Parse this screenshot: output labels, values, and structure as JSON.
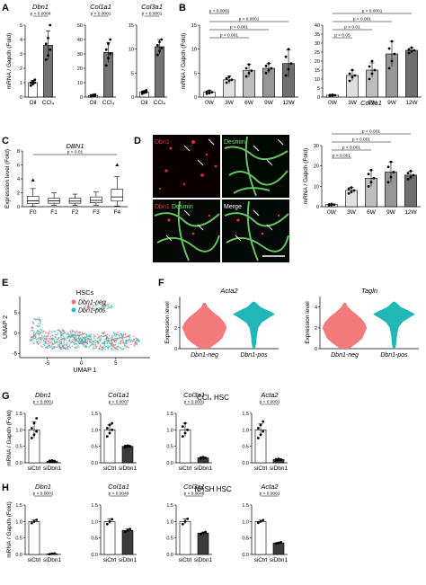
{
  "panels": {
    "A": {
      "label": "A"
    },
    "B": {
      "label": "B"
    },
    "C": {
      "label": "C"
    },
    "D": {
      "label": "D"
    },
    "E": {
      "label": "E"
    },
    "F": {
      "label": "F"
    },
    "G": {
      "label": "G"
    },
    "H": {
      "label": "H"
    }
  },
  "chart_data": [
    {
      "id": "A1",
      "type": "bar",
      "title": "Dbn1",
      "ylabel": "mRNA / Gapdh (Fold)",
      "categories": [
        "Oil",
        "CCl₄"
      ],
      "values": [
        1.0,
        3.6
      ],
      "errors": [
        0.15,
        1.0
      ],
      "ylim": [
        0,
        5
      ],
      "yticks": [
        0,
        1,
        2,
        3,
        4,
        5
      ],
      "colors": [
        "#ffffff",
        "#737373"
      ],
      "points": [
        [
          0.8,
          0.9,
          1.0,
          1.0,
          1.1,
          1.2
        ],
        [
          2.6,
          2.9,
          3.3,
          3.7,
          4.1,
          5.0
        ]
      ],
      "brackets": [
        {
          "from": 0,
          "to": 1,
          "label": "p < 0.0004"
        }
      ]
    },
    {
      "id": "A2",
      "type": "bar",
      "title": "Col1a1",
      "categories": [
        "Oil",
        "CCl₄"
      ],
      "values": [
        1.0,
        31
      ],
      "errors": [
        0.7,
        7
      ],
      "ylim": [
        0,
        50
      ],
      "yticks": [
        0,
        10,
        20,
        30,
        40,
        50
      ],
      "colors": [
        "#ffffff",
        "#737373"
      ],
      "points": [
        [
          0.4,
          0.8,
          1.0,
          1.2,
          1.5,
          1.8
        ],
        [
          22,
          27,
          30,
          33,
          37,
          40
        ]
      ],
      "brackets": [
        {
          "from": 0,
          "to": 1,
          "label": "p < 0.0001"
        }
      ]
    },
    {
      "id": "A3",
      "type": "bar",
      "title": "Col3a1",
      "categories": [
        "Oil",
        "CCl₄"
      ],
      "values": [
        1.0,
        10.5
      ],
      "errors": [
        0.3,
        1.5
      ],
      "ylim": [
        0,
        15
      ],
      "yticks": [
        0,
        5,
        10,
        15
      ],
      "colors": [
        "#ffffff",
        "#737373"
      ],
      "points": [
        [
          0.7,
          0.9,
          1.0,
          1.1,
          1.2,
          1.4
        ],
        [
          8.8,
          9.6,
          10.2,
          10.8,
          11.5,
          12.0
        ]
      ],
      "brackets": [
        {
          "from": 0,
          "to": 1,
          "label": "p < 0.0001"
        }
      ]
    },
    {
      "id": "B1",
      "type": "bar",
      "title": "Dbn1",
      "ylabel": "mRNA / Gapdh (Fold)",
      "categories": [
        "0W",
        "3W",
        "6W",
        "9W",
        "12W"
      ],
      "values": [
        1.0,
        3.6,
        5.5,
        6.0,
        7.0
      ],
      "errors": [
        0.4,
        0.8,
        1.3,
        1.0,
        2.8
      ],
      "ylim": [
        0,
        15
      ],
      "yticks": [
        0,
        5,
        10,
        15
      ],
      "colors": [
        "#ffffff",
        "#e0e0e0",
        "#bdbdbd",
        "#969696",
        "#6e6e6e"
      ],
      "points": [
        [
          0.7,
          0.8,
          1.0,
          1.1,
          1.3
        ],
        [
          3.0,
          3.4,
          3.6,
          3.9,
          4.2
        ],
        [
          4.3,
          5.0,
          5.5,
          6.0,
          6.8
        ],
        [
          5.0,
          5.6,
          6.0,
          6.5,
          7.0
        ],
        [
          4.5,
          5.8,
          7.0,
          8.4,
          10.0
        ]
      ],
      "brackets": [
        {
          "from": 0,
          "to": 2,
          "label": "p < 0.001"
        },
        {
          "from": 0,
          "to": 3,
          "label": "p < 0.001"
        },
        {
          "from": 0,
          "to": 4,
          "label": "p < 0.0001"
        },
        {
          "from": 0,
          "to": 1,
          "label": "p < 0.0001"
        }
      ]
    },
    {
      "id": "B2",
      "type": "bar",
      "title": "Col1a1",
      "categories": [
        "0W",
        "3W",
        "6W",
        "9W",
        "12W"
      ],
      "values": [
        1.0,
        12,
        15,
        24,
        26
      ],
      "errors": [
        0.3,
        3,
        4,
        7,
        1.5
      ],
      "ylim": [
        0,
        40
      ],
      "yticks": [
        0,
        5,
        10,
        15,
        20,
        25,
        30,
        35,
        40
      ],
      "colors": [
        "#ffffff",
        "#e0e0e0",
        "#bdbdbd",
        "#969696",
        "#6e6e6e"
      ],
      "points": [
        [
          0.7,
          0.8,
          1.0,
          1.1,
          1.3
        ],
        [
          9,
          11,
          12,
          13,
          15
        ],
        [
          10,
          13,
          15,
          17,
          20
        ],
        [
          16,
          20,
          24,
          27,
          31
        ],
        [
          24.5,
          25.5,
          26,
          26.5,
          27.5
        ]
      ],
      "brackets": [
        {
          "from": 0,
          "to": 1,
          "label": "p < 0.05"
        },
        {
          "from": 0,
          "to": 2,
          "label": "p < 0.01"
        },
        {
          "from": 0,
          "to": 3,
          "label": "p < 0.001"
        },
        {
          "from": 0,
          "to": 4,
          "label": "p < 0.0001"
        }
      ]
    },
    {
      "id": "C",
      "type": "box",
      "title": "DBN1",
      "ylabel": "Expression level (Fold)",
      "categories": [
        "F0",
        "F1",
        "F2",
        "F3",
        "F4"
      ],
      "boxes": [
        {
          "min": 0.05,
          "q1": 0.45,
          "median": 0.85,
          "q3": 1.5,
          "max": 2.6,
          "outliers": [
            3.8
          ]
        },
        {
          "min": 0.2,
          "q1": 0.5,
          "median": 0.85,
          "q3": 1.2,
          "max": 2.0,
          "outliers": []
        },
        {
          "min": 0.2,
          "q1": 0.5,
          "median": 0.8,
          "q3": 1.2,
          "max": 1.8,
          "outliers": []
        },
        {
          "min": 0.2,
          "q1": 0.55,
          "median": 0.9,
          "q3": 1.4,
          "max": 2.1,
          "outliers": []
        },
        {
          "min": 0.1,
          "q1": 0.8,
          "median": 1.4,
          "q3": 2.5,
          "max": 4.3,
          "outliers": [
            6.0
          ]
        }
      ],
      "ylim": [
        0,
        8
      ],
      "yticks": [
        0,
        2,
        4,
        6,
        8
      ],
      "brackets": [
        {
          "from": 0,
          "to": 4,
          "label": "p < 0.01"
        }
      ]
    },
    {
      "id": "D2",
      "type": "bar",
      "title": "Col3a1",
      "ylabel": "mRNA / Gapdh (Fold)",
      "categories": [
        "0W",
        "3W",
        "6W",
        "9W",
        "12W"
      ],
      "values": [
        1.0,
        8,
        14,
        17,
        15.5
      ],
      "errors": [
        0.3,
        1.5,
        4,
        5,
        2
      ],
      "ylim": [
        0,
        30
      ],
      "yticks": [
        0,
        10,
        20,
        30
      ],
      "colors": [
        "#ffffff",
        "#e0e0e0",
        "#bdbdbd",
        "#969696",
        "#6e6e6e"
      ],
      "points": [
        [
          0.7,
          0.8,
          1.0,
          1.1,
          1.3
        ],
        [
          6.5,
          7.2,
          8,
          8.8,
          9.4
        ],
        [
          10,
          12,
          14,
          16,
          18
        ],
        [
          12,
          14.5,
          17,
          19.5,
          22
        ],
        [
          13.5,
          14.5,
          15.5,
          16.5,
          17.5
        ]
      ],
      "brackets": [
        {
          "from": 0,
          "to": 1,
          "label": "p < 0.001"
        },
        {
          "from": 0,
          "to": 2,
          "label": "p < 0.001"
        },
        {
          "from": 0,
          "to": 3,
          "label": "p < 0.001"
        },
        {
          "from": 0,
          "to": 4,
          "label": "p < 0.001"
        }
      ]
    },
    {
      "id": "E",
      "type": "scatter",
      "title": "HSCs",
      "xlabel": "UMAP 1",
      "ylabel": "UMAP 2",
      "xlim": [
        -9,
        10
      ],
      "ylim": [
        -6,
        9
      ],
      "xticks": [
        -5,
        0,
        5
      ],
      "yticks": [
        -5,
        0,
        5
      ],
      "legend": [
        "Dbn1-neg",
        "Dbn1-pos"
      ],
      "legend_colors": [
        "#ee6b6b",
        "#2bbcbc"
      ]
    },
    {
      "id": "F1",
      "type": "violin",
      "title": "Acta2",
      "ylabel": "Expression level",
      "categories": [
        "Dbn1-neg",
        "Dbn1-pos"
      ],
      "ylim": [
        0,
        5
      ],
      "yticks": [
        0,
        2,
        4
      ],
      "colors": [
        "#f27a7a",
        "#22b7b7"
      ]
    },
    {
      "id": "F2",
      "type": "violin",
      "title": "Tagln",
      "ylabel": "Expression level",
      "categories": [
        "Dbn1-neg",
        "Dbn1-pos"
      ],
      "ylim": [
        0,
        5
      ],
      "yticks": [
        0,
        2,
        4
      ],
      "colors": [
        "#f27a7a",
        "#22b7b7"
      ]
    },
    {
      "id": "G1",
      "type": "bar",
      "title": "Dbn1",
      "ylabel": "mRNA / Gapdh (Fold)",
      "categories": [
        "siCtrl",
        "siDbn1"
      ],
      "values": [
        1.0,
        0.05
      ],
      "errors": [
        0.25,
        0.02
      ],
      "ylim": [
        0,
        1.5
      ],
      "yticks": [
        0,
        0.5,
        1.0,
        1.5
      ],
      "colors": [
        "#ffffff",
        "#3a3a3a"
      ],
      "points": [
        [
          0.75,
          0.85,
          0.95,
          1.05,
          1.2,
          1.35
        ],
        [
          0.03,
          0.04,
          0.05,
          0.06,
          0.07,
          0.05
        ]
      ],
      "brackets": [
        {
          "from": 0,
          "to": 1,
          "label": "p < 0.0001"
        }
      ]
    },
    {
      "id": "G2",
      "type": "bar",
      "title": "Col1a1",
      "categories": [
        "siCtrl",
        "siDbn1"
      ],
      "values": [
        1.0,
        0.5
      ],
      "errors": [
        0.15,
        0.03
      ],
      "ylim": [
        0,
        1.5
      ],
      "yticks": [
        0,
        0.5,
        1.0,
        1.5
      ],
      "colors": [
        "#ffffff",
        "#3a3a3a"
      ],
      "points": [
        [
          0.8,
          0.9,
          1.0,
          1.05,
          1.15,
          1.2
        ],
        [
          0.47,
          0.49,
          0.5,
          0.51,
          0.52,
          0.5
        ]
      ],
      "brackets": [
        {
          "from": 0,
          "to": 1,
          "label": "p < 0.0007"
        }
      ]
    },
    {
      "id": "G3",
      "type": "bar",
      "title": "Col3a1",
      "categories": [
        "siCtrl",
        "siDbn1"
      ],
      "values": [
        1.0,
        0.15
      ],
      "errors": [
        0.2,
        0.02
      ],
      "ylim": [
        0,
        1.5
      ],
      "yticks": [
        0,
        0.5,
        1.0,
        1.5
      ],
      "colors": [
        "#ffffff",
        "#3a3a3a"
      ],
      "points": [
        [
          0.8,
          0.9,
          1.0,
          1.1,
          1.2
        ],
        [
          0.13,
          0.14,
          0.15,
          0.16,
          0.17
        ]
      ],
      "brackets": [
        {
          "from": 0,
          "to": 1,
          "label": "p < 0.0001"
        }
      ]
    },
    {
      "id": "G4",
      "type": "bar",
      "title": "Acta2",
      "categories": [
        "siCtrl",
        "siDbn1"
      ],
      "values": [
        1.0,
        0.1
      ],
      "errors": [
        0.18,
        0.02
      ],
      "ylim": [
        0,
        1.5
      ],
      "yticks": [
        0,
        0.5,
        1.0,
        1.5
      ],
      "colors": [
        "#ffffff",
        "#3a3a3a"
      ],
      "points": [
        [
          0.75,
          0.85,
          0.95,
          1.05,
          1.15,
          1.25
        ],
        [
          0.08,
          0.09,
          0.1,
          0.11,
          0.12,
          0.1
        ]
      ],
      "brackets": [
        {
          "from": 0,
          "to": 1,
          "label": "p < 0.0001"
        }
      ]
    },
    {
      "id": "H1",
      "type": "bar",
      "title": "Dbn1",
      "ylabel": "mRNA / Gapdh (Fold)",
      "categories": [
        "siCtrl",
        "siDbn1"
      ],
      "values": [
        1.0,
        0.02
      ],
      "errors": [
        0.05,
        0.01
      ],
      "ylim": [
        0,
        1.5
      ],
      "yticks": [
        0,
        0.5,
        1.0,
        1.5
      ],
      "colors": [
        "#ffffff",
        "#3a3a3a"
      ],
      "points": [
        [
          0.95,
          1.0,
          1.05
        ],
        [
          0.01,
          0.02,
          0.03
        ]
      ],
      "brackets": [
        {
          "from": 0,
          "to": 1,
          "label": "p < 0.0001"
        }
      ]
    },
    {
      "id": "H2",
      "type": "bar",
      "title": "Col1a1",
      "categories": [
        "siCtrl",
        "siDbn1"
      ],
      "values": [
        1.0,
        0.73
      ],
      "errors": [
        0.07,
        0.05
      ],
      "ylim": [
        0,
        1.5
      ],
      "yticks": [
        0,
        0.5,
        1.0,
        1.5
      ],
      "colors": [
        "#ffffff",
        "#3a3a3a"
      ],
      "points": [
        [
          0.92,
          1.0,
          1.07
        ],
        [
          0.69,
          0.73,
          0.77
        ]
      ],
      "brackets": [
        {
          "from": 0,
          "to": 1,
          "label": "p < 0.0049"
        }
      ]
    },
    {
      "id": "H3",
      "type": "bar",
      "title": "Col3a1",
      "categories": [
        "siCtrl",
        "siDbn1"
      ],
      "values": [
        1.0,
        0.65
      ],
      "errors": [
        0.08,
        0.03
      ],
      "ylim": [
        0,
        1.5
      ],
      "yticks": [
        0,
        0.5,
        1.0,
        1.5
      ],
      "colors": [
        "#ffffff",
        "#3a3a3a"
      ],
      "points": [
        [
          0.92,
          1.0,
          1.08
        ],
        [
          0.62,
          0.65,
          0.68
        ]
      ],
      "brackets": [
        {
          "from": 0,
          "to": 1,
          "label": "p < 0.0048"
        }
      ]
    },
    {
      "id": "H4",
      "type": "bar",
      "title": "Acta2",
      "categories": [
        "siCtrl",
        "siDbn1"
      ],
      "values": [
        1.0,
        0.35
      ],
      "errors": [
        0.04,
        0.02
      ],
      "ylim": [
        0,
        1.5
      ],
      "yticks": [
        0,
        0.5,
        1.0,
        1.5
      ],
      "colors": [
        "#ffffff",
        "#3a3a3a"
      ],
      "points": [
        [
          0.96,
          1.0,
          1.04
        ],
        [
          0.33,
          0.35,
          0.37
        ]
      ],
      "brackets": [
        {
          "from": 0,
          "to": 1,
          "label": "p < 0.0001"
        }
      ]
    }
  ],
  "headers": {
    "G": "CCl₄ HSC",
    "H": "NASH HSC"
  },
  "micrographs": {
    "p1_a": "Dbn1",
    "p2_a": "Desmin",
    "p3_a": "Dbn1",
    "p3_b": "Desmin",
    "p4_a": "Merge"
  }
}
